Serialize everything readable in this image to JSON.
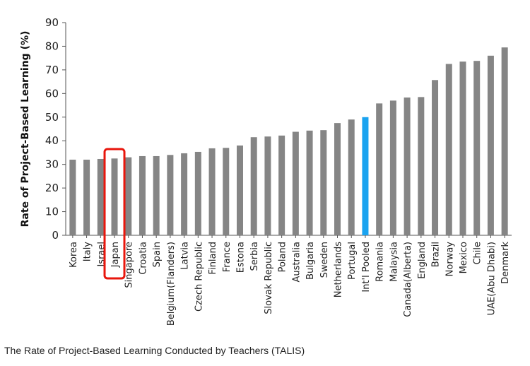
{
  "caption": "The Rate of Project-Based Learning Conducted by Teachers (TALIS)",
  "chart_data": {
    "type": "bar",
    "ylabel": "Rate of Project-Based Learning (%)",
    "ylim": [
      0,
      90
    ],
    "yticks": [
      0,
      10,
      20,
      30,
      40,
      50,
      60,
      70,
      80,
      90
    ],
    "grid": false,
    "categories": [
      "Korea",
      "Italy",
      "Israel",
      "Japan",
      "Singapore",
      "Croatia",
      "Spain",
      "Belgium(Flanders)",
      "Latvia",
      "Czech Republic",
      "Finland",
      "France",
      "Estona",
      "Serbia",
      "Slovak Republic",
      "Poland",
      "Australia",
      "Bulgaria",
      "Sweden",
      "Netherlands",
      "Portugal",
      "Int'l Pooled",
      "Romania",
      "Malaysia",
      "Canada(Alberta)",
      "England",
      "Brazil",
      "Norway",
      "Mexico",
      "Chile",
      "UAE(Abu Dhabi)",
      "Denmark"
    ],
    "values": [
      32,
      32,
      32.3,
      32.5,
      33,
      33.5,
      33.5,
      34,
      34.7,
      35.3,
      36.8,
      37,
      38,
      41.5,
      41.8,
      42.2,
      43.8,
      44.3,
      44.5,
      47.5,
      49,
      50,
      55.8,
      57,
      58.3,
      58.5,
      65.7,
      72.5,
      73.5,
      73.8,
      76,
      79.5
    ],
    "bar_color": "#858585",
    "highlight_color": "#1aa3f0",
    "highlight_category": "Int'l Pooled",
    "annotation_box_category": "Japan",
    "annotation_box_color": "#e8160c"
  }
}
